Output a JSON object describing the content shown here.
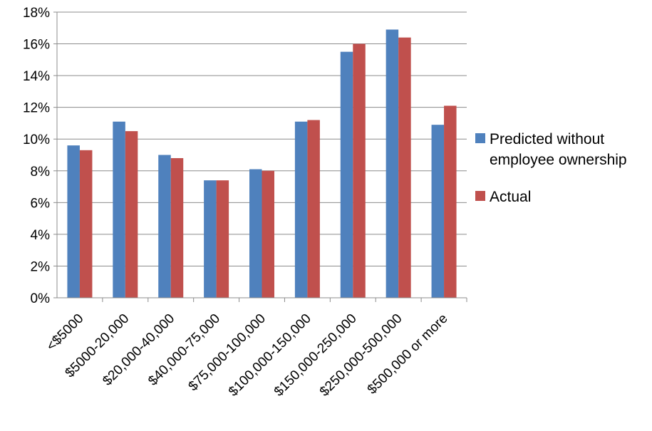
{
  "chart_data": {
    "type": "bar",
    "title": "",
    "xlabel": "",
    "ylabel": "",
    "categories": [
      "<$5000",
      "$5000-20,000",
      "$20,000-40,000",
      "$40,000-75,000",
      "$75,000-100,000",
      "$100,000-150,000",
      "$150,000-250,000",
      "$250,000-500,000",
      "$500,000 or more"
    ],
    "series": [
      {
        "name": "Predicted without employee ownership",
        "legend_lines": [
          "Predicted without",
          "employee ownership"
        ],
        "color": "#4F81BD",
        "values": [
          9.6,
          11.1,
          9.0,
          7.4,
          8.1,
          11.1,
          15.5,
          16.9,
          10.9
        ]
      },
      {
        "name": "Actual",
        "legend_lines": [
          "Actual"
        ],
        "color": "#C0504D",
        "values": [
          9.3,
          10.5,
          8.8,
          7.4,
          8.0,
          11.2,
          16.0,
          16.4,
          12.1
        ]
      }
    ],
    "ylim": [
      0,
      18
    ],
    "yticks": [
      0,
      2,
      4,
      6,
      8,
      10,
      12,
      14,
      16,
      18
    ],
    "ytick_labels": [
      "0%",
      "2%",
      "4%",
      "6%",
      "8%",
      "10%",
      "12%",
      "14%",
      "16%",
      "18%"
    ],
    "grid": true,
    "legend": "right"
  }
}
